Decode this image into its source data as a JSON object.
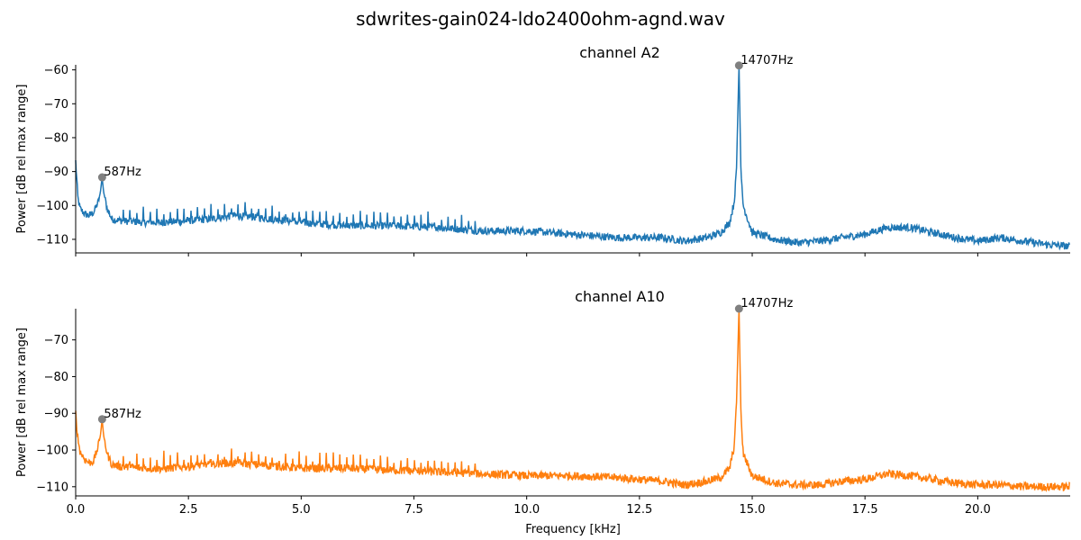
{
  "figure": {
    "title": "sdwrites-gain024-ldo2400ohm-agnd.wav"
  },
  "chart_data": [
    {
      "type": "line",
      "title": "channel A2",
      "xlabel": "",
      "ylabel": "Power [dB rel max range]",
      "xlim": [
        0,
        22.05
      ],
      "ylim": [
        -114,
        -58.5
      ],
      "x_ticks": [
        0.0,
        2.5,
        5.0,
        7.5,
        10.0,
        12.5,
        15.0,
        17.5,
        20.0
      ],
      "x_tick_labels": [],
      "y_ticks": [
        -60,
        -70,
        -80,
        -90,
        -100,
        -110
      ],
      "y_tick_labels": [
        "−60",
        "−70",
        "−80",
        "−90",
        "−100",
        "−110"
      ],
      "color": "#1f77b4",
      "series": [
        {
          "x": [
            0.0,
            0.05,
            0.1,
            0.2,
            0.3,
            0.4,
            0.5,
            0.55,
            0.587,
            0.62,
            0.7,
            0.8,
            1.0,
            1.5,
            2.0,
            2.5,
            3.0,
            3.5,
            4.0,
            5.0,
            6.0,
            7.0,
            8.0,
            9.0,
            10.0,
            11.0,
            12.0,
            13.0,
            13.5,
            14.0,
            14.3,
            14.5,
            14.6,
            14.65,
            14.707,
            14.75,
            14.8,
            14.9,
            15.0,
            15.5,
            16.0,
            16.5,
            17.0,
            17.5,
            18.0,
            18.5,
            19.0,
            19.5,
            20.0,
            20.5,
            21.0,
            21.5,
            22.0
          ],
          "y": [
            -87,
            -98,
            -101,
            -102.5,
            -103,
            -102,
            -99,
            -96,
            -91.7,
            -96,
            -101,
            -104,
            -104.5,
            -105,
            -105,
            -104.5,
            -104,
            -103,
            -103.5,
            -105,
            -106,
            -106,
            -106.5,
            -107.5,
            -107.5,
            -108.5,
            -109.5,
            -109.5,
            -110.5,
            -109.5,
            -108,
            -105,
            -99,
            -90,
            -58.7,
            -90,
            -100,
            -104,
            -108,
            -110,
            -111,
            -110.5,
            -109.5,
            -108.5,
            -106.5,
            -106.5,
            -108,
            -109.5,
            -110.5,
            -109.5,
            -110.5,
            -111.5,
            -112
          ]
        }
      ],
      "peaks": [
        {
          "x": 0.587,
          "y": -91.7,
          "label": "587Hz"
        },
        {
          "x": 14.707,
          "y": -58.7,
          "label": "14707Hz"
        }
      ]
    },
    {
      "type": "line",
      "title": "channel A10",
      "xlabel": "Frequency [kHz]",
      "ylabel": "Power [dB rel max range]",
      "xlim": [
        0,
        22.05
      ],
      "ylim": [
        -112.5,
        -61.5
      ],
      "x_ticks": [
        0.0,
        2.5,
        5.0,
        7.5,
        10.0,
        12.5,
        15.0,
        17.5,
        20.0
      ],
      "x_tick_labels": [
        "0.0",
        "2.5",
        "5.0",
        "7.5",
        "10.0",
        "12.5",
        "15.0",
        "17.5",
        "20.0"
      ],
      "y_ticks": [
        -70,
        -80,
        -90,
        -100,
        -110
      ],
      "y_tick_labels": [
        "−70",
        "−80",
        "−90",
        "−100",
        "−110"
      ],
      "color": "#ff7f0e",
      "series": [
        {
          "x": [
            0.0,
            0.05,
            0.1,
            0.2,
            0.3,
            0.4,
            0.5,
            0.55,
            0.587,
            0.62,
            0.7,
            0.8,
            1.0,
            1.5,
            2.0,
            2.5,
            3.0,
            3.5,
            4.0,
            5.0,
            6.0,
            7.0,
            8.0,
            9.0,
            10.0,
            11.0,
            12.0,
            13.0,
            13.5,
            14.0,
            14.3,
            14.5,
            14.6,
            14.65,
            14.707,
            14.75,
            14.8,
            14.9,
            15.0,
            15.5,
            16.0,
            16.5,
            17.0,
            17.5,
            18.0,
            18.5,
            19.0,
            19.5,
            20.0,
            20.5,
            21.0,
            21.5,
            22.0
          ],
          "y": [
            -90,
            -97,
            -100.5,
            -102.5,
            -103.5,
            -103,
            -99,
            -96,
            -91.6,
            -96,
            -101,
            -104,
            -104.5,
            -105,
            -105,
            -104.5,
            -104,
            -103.5,
            -104,
            -105,
            -105,
            -105.5,
            -106,
            -106.5,
            -107,
            -107,
            -107.5,
            -108.5,
            -109.5,
            -108.5,
            -107.5,
            -105,
            -99,
            -88,
            -61.5,
            -90,
            -101,
            -104,
            -107,
            -109,
            -109.5,
            -109.5,
            -108.5,
            -108,
            -106.5,
            -107,
            -108,
            -109,
            -109.5,
            -109.5,
            -110,
            -110,
            -110
          ]
        }
      ],
      "peaks": [
        {
          "x": 0.587,
          "y": -91.6,
          "label": "587Hz"
        },
        {
          "x": 14.707,
          "y": -61.5,
          "label": "14707Hz"
        }
      ]
    }
  ]
}
